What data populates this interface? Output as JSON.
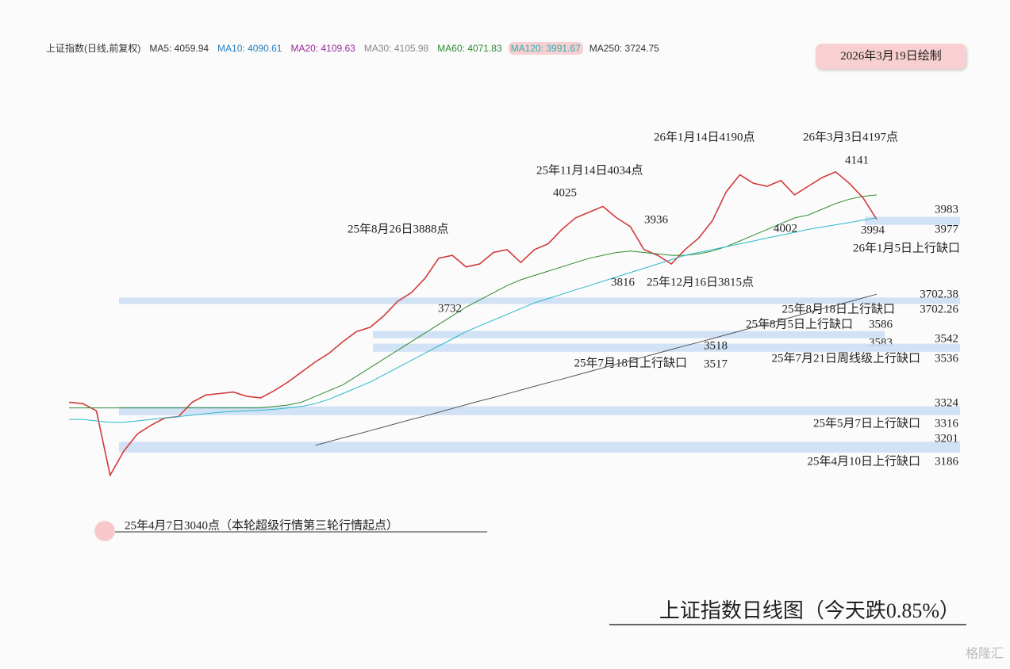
{
  "header": {
    "title": "上证指数(日线,前复权)",
    "ma_legend": [
      {
        "label": "MA5: 4059.94",
        "color": "#333333"
      },
      {
        "label": "MA10: 4090.61",
        "color": "#2a7fc0"
      },
      {
        "label": "MA20: 4109.63",
        "color": "#9b2a9b"
      },
      {
        "label": "MA30: 4105.98",
        "color": "#888888"
      },
      {
        "label": "MA60: 4071.83",
        "color": "#2e8b2e"
      },
      {
        "label": "MA120: 3991.67",
        "color": "#2ab0b0"
      },
      {
        "label": "MA250: 3724.75",
        "color": "#333333"
      }
    ],
    "date_note": "2026年3月19日绘制"
  },
  "chart_data": {
    "type": "line",
    "title": "上证指数日线图（今天跌0.85%）",
    "ylim": [
      2960,
      4400
    ],
    "series": [
      {
        "name": "close",
        "color": "#d23a3a",
        "values": [
          3350,
          3345,
          3320,
          3096,
          3180,
          3240,
          3270,
          3295,
          3300,
          3350,
          3375,
          3380,
          3385,
          3370,
          3365,
          3390,
          3420,
          3455,
          3490,
          3520,
          3560,
          3595,
          3610,
          3650,
          3700,
          3730,
          3780,
          3850,
          3860,
          3820,
          3830,
          3870,
          3880,
          3835,
          3880,
          3900,
          3950,
          3990,
          4010,
          4030,
          3990,
          3960,
          3880,
          3860,
          3830,
          3880,
          3920,
          3980,
          4080,
          4140,
          4110,
          4100,
          4120,
          4070,
          4100,
          4130,
          4150,
          4110,
          4060,
          3985
        ]
      },
      {
        "name": "MA60",
        "color": "#2e8b2e",
        "values": [
          3330,
          3330,
          3330,
          3330,
          3330,
          3330,
          3330,
          3330,
          3330,
          3330,
          3330,
          3330,
          3330,
          3330,
          3330,
          3335,
          3340,
          3350,
          3370,
          3390,
          3410,
          3440,
          3470,
          3500,
          3530,
          3560,
          3590,
          3620,
          3650,
          3680,
          3705,
          3730,
          3755,
          3775,
          3790,
          3805,
          3820,
          3835,
          3850,
          3860,
          3870,
          3875,
          3870,
          3865,
          3860,
          3860,
          3865,
          3875,
          3890,
          3910,
          3930,
          3950,
          3970,
          3990,
          4000,
          4020,
          4040,
          4055,
          4065,
          4070
        ]
      },
      {
        "name": "MA120",
        "color": "#2ab8c8",
        "values": [
          3290,
          3290,
          3285,
          3280,
          3280,
          3285,
          3290,
          3295,
          3300,
          3305,
          3310,
          3315,
          3318,
          3320,
          3322,
          3325,
          3330,
          3335,
          3345,
          3360,
          3380,
          3400,
          3420,
          3445,
          3470,
          3495,
          3520,
          3545,
          3570,
          3595,
          3615,
          3635,
          3655,
          3675,
          3695,
          3710,
          3725,
          3740,
          3755,
          3770,
          3785,
          3800,
          3815,
          3830,
          3845,
          3860,
          3870,
          3880,
          3890,
          3900,
          3910,
          3920,
          3930,
          3940,
          3950,
          3958,
          3966,
          3974,
          3982,
          3990
        ]
      },
      {
        "name": "MA250",
        "color": "#555555",
        "values": [
          null,
          null,
          null,
          null,
          null,
          null,
          null,
          null,
          null,
          null,
          null,
          null,
          null,
          null,
          null,
          null,
          null,
          null,
          3200,
          3213,
          3226,
          3238,
          3251,
          3264,
          3277,
          3290,
          3302,
          3315,
          3328,
          3341,
          3354,
          3366,
          3379,
          3392,
          3405,
          3418,
          3430,
          3443,
          3456,
          3469,
          3482,
          3494,
          3507,
          3520,
          3533,
          3546,
          3558,
          3571,
          3584,
          3597,
          3610,
          3622,
          3635,
          3648,
          3661,
          3674,
          3686,
          3699,
          3712,
          3725
        ]
      }
    ],
    "gaps": [
      {
        "name": "26年1月5日上行缺口",
        "upper": 3983,
        "lower": 3977
      },
      {
        "name": "25年8月18日上行缺口",
        "upper": 3702.38,
        "lower": 3702.26
      },
      {
        "name": "25年8月5日上行缺口",
        "upper": 3586,
        "lower": 3583
      },
      {
        "name": "25年7月21日周线级上行缺口",
        "upper": 3542,
        "lower": 3536
      },
      {
        "name": "25年7月18日上行缺口",
        "upper": 3518,
        "lower": 3517
      },
      {
        "name": "25年5月7日上行缺口",
        "upper": 3324,
        "lower": 3316
      },
      {
        "name": "25年4月10日上行缺口",
        "upper": 3201,
        "lower": 3186
      }
    ],
    "annotations": [
      "26年1月14日4190点",
      "26年3月3日4197点",
      "4141",
      "25年11月14日4034点",
      "4025",
      "3936",
      "25年8月26日3888点",
      "4002",
      "3994",
      "3816",
      "25年12月16日3815点",
      "3732",
      "25年4月7日3040点（本轮超级行情第三轮行情起点）"
    ]
  },
  "watermark": "格隆汇"
}
